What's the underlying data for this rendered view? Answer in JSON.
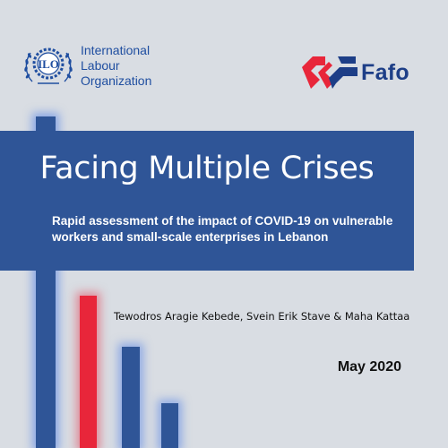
{
  "logos": {
    "ilo": {
      "emblem_text": "ILO",
      "name_lines": [
        "International",
        "Labour",
        "Organization"
      ]
    },
    "fafo": {
      "wordmark": "Fafo",
      "mark_colors": [
        "#e8263a",
        "#1d3e87"
      ]
    }
  },
  "cover": {
    "title": "Facing Multiple Crises",
    "subtitle_lines": [
      "Rapid assessment of the impact of COVID-19 on vulnerable",
      "workers and small-scale enterprises in Lebanon"
    ],
    "authors": "Tewodros Aragie Kebede, Svein Erik Stave & Maha Kattaa",
    "date": "May 2020"
  },
  "colors": {
    "background": "#d9dde3",
    "panel": "#2f5597",
    "accent_red": "#e8263a",
    "ilo_blue": "#1f4ea0"
  }
}
